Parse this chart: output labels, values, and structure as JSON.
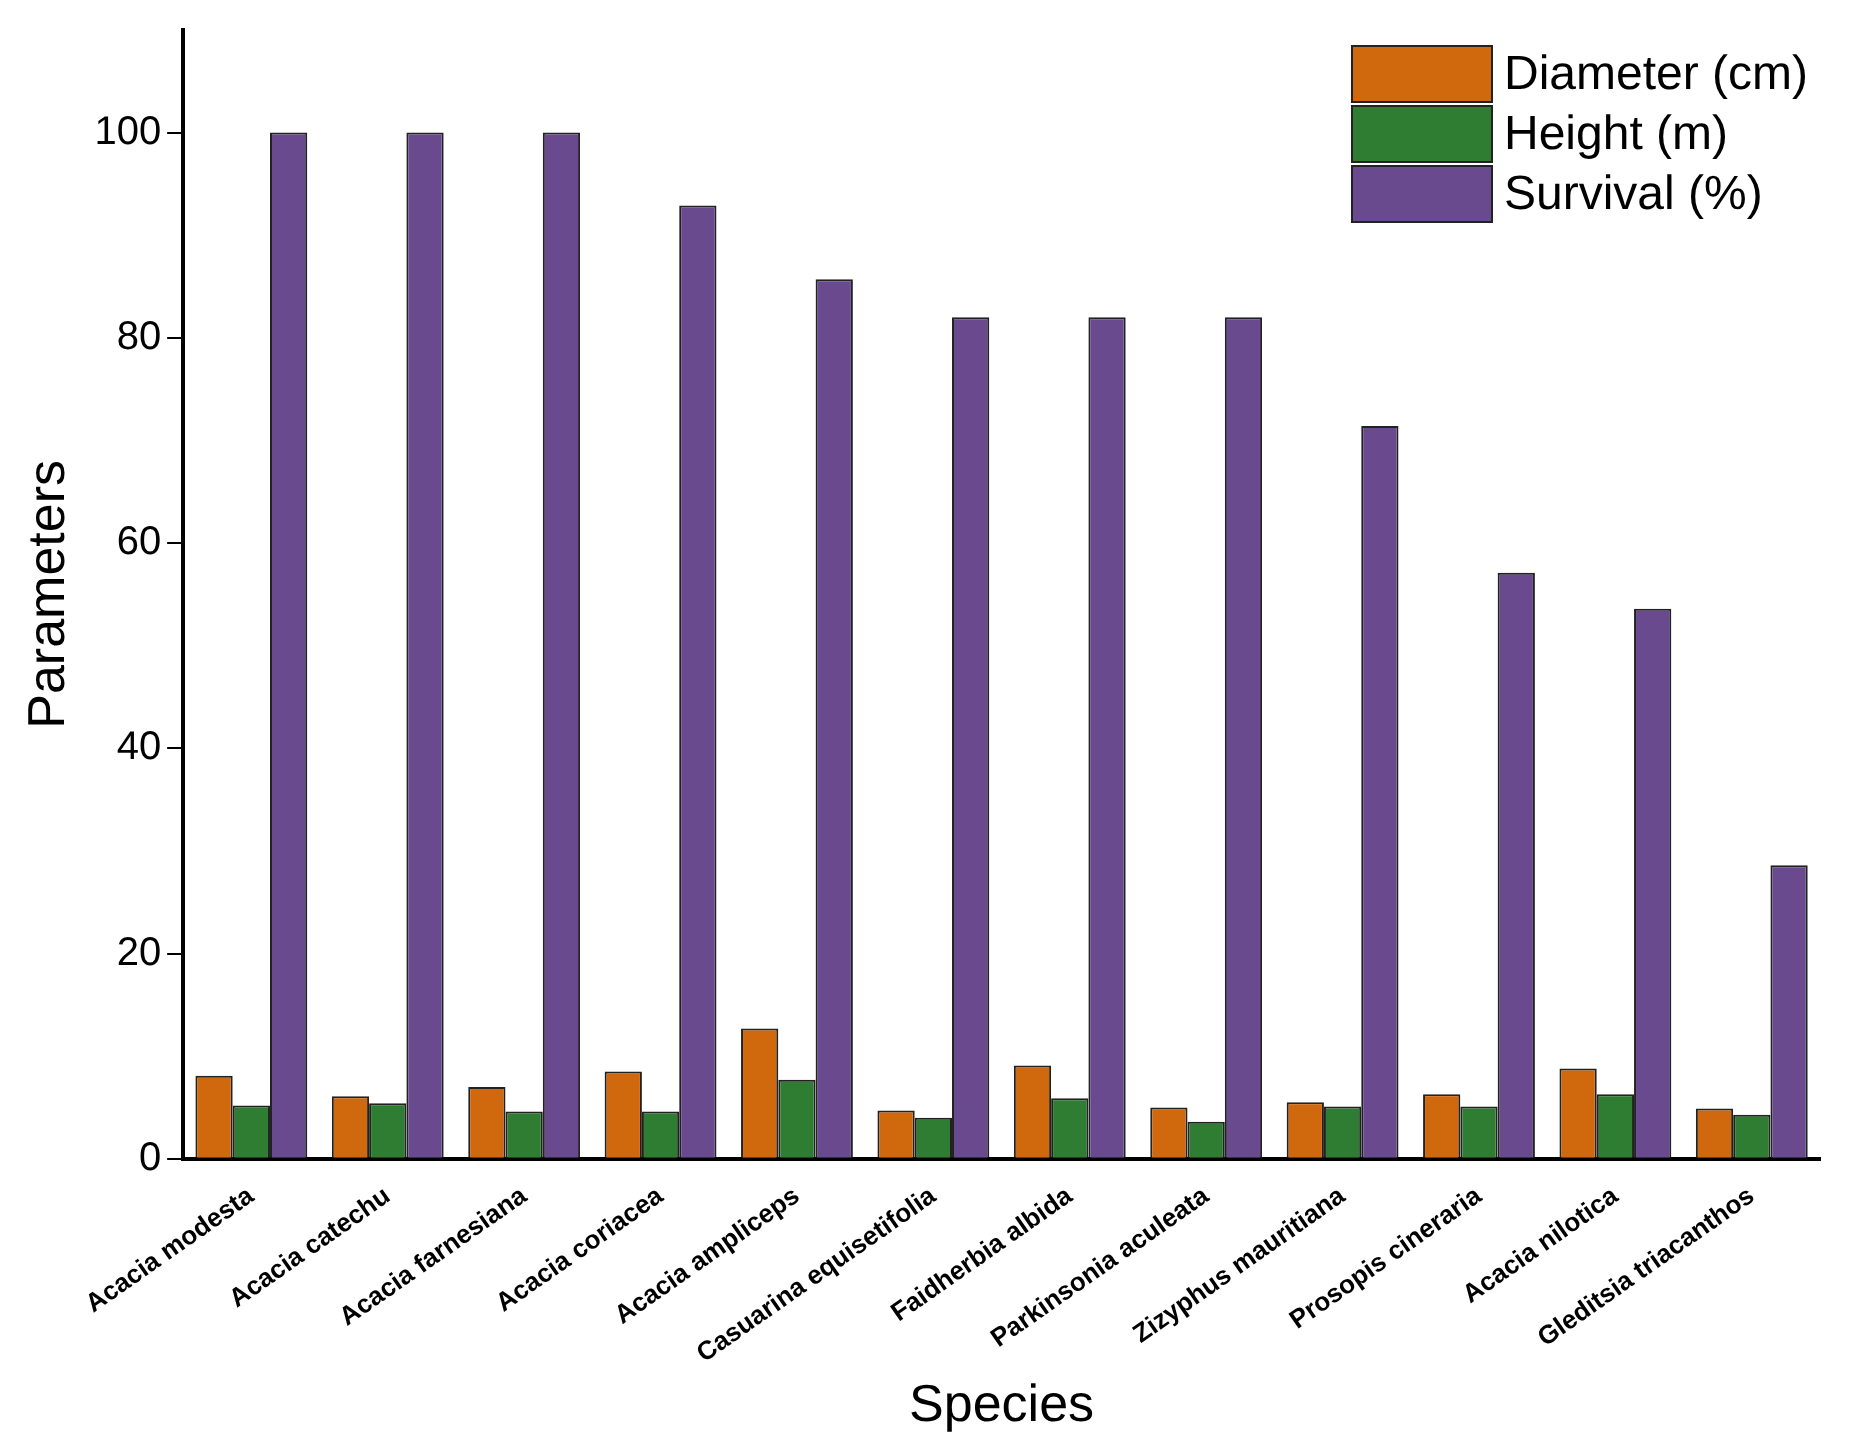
{
  "chart_data": {
    "type": "bar",
    "xlabel": "Species",
    "ylabel": "Parameters",
    "categories": [
      "Acacia modesta",
      "Acacia catechu",
      "Acacia farnesiana",
      "Acacia coriacea",
      "Acacia ampliceps",
      "Casuarina equisetifolia",
      "Faidherbia albida",
      "Parkinsonia aculeata",
      "Zizyphus mauritiana",
      "Prosopis cineraria",
      "Acacia nilotica",
      "Gleditsia triacanthos"
    ],
    "series": [
      {
        "name": "Diameter (cm)",
        "color": "#d0690e",
        "values": [
          8.1,
          6.1,
          7.0,
          8.5,
          12.7,
          4.7,
          9.1,
          5.0,
          5.5,
          6.3,
          8.8,
          4.9
        ]
      },
      {
        "name": "Height (m)",
        "color": "#2e7d32",
        "values": [
          5.2,
          5.4,
          4.6,
          4.6,
          7.7,
          4.0,
          5.9,
          3.6,
          5.1,
          5.1,
          6.3,
          4.3
        ]
      },
      {
        "name": "Survival (%)",
        "color": "#6a4a8e",
        "values": [
          100,
          100,
          100,
          92.9,
          85.7,
          82,
          82,
          82,
          71.4,
          57.1,
          53.6,
          28.6
        ]
      }
    ],
    "ylim": [
      0,
      110
    ],
    "yticks": [
      0,
      20,
      40,
      60,
      80,
      100
    ],
    "grid": false,
    "legend": "top right"
  }
}
